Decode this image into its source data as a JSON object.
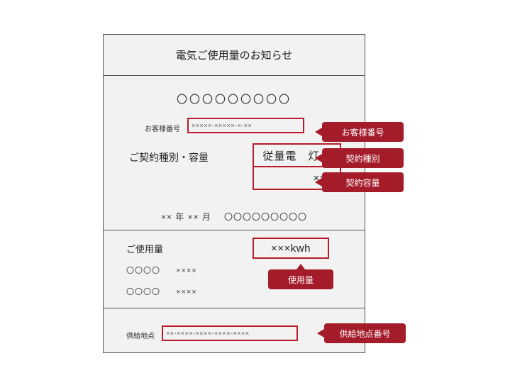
{
  "colors": {
    "highlight_border": "#b81c2b",
    "callout_bg": "#a41b2a",
    "callout_text": "#ffffff",
    "sheet_border": "#555555",
    "sheet_bg": "#f2f2f2",
    "text_main": "#222222",
    "text_sub": "#5a5a5a"
  },
  "header": {
    "title": "電気ご使用量のお知らせ"
  },
  "contract": {
    "circles_placeholder": "〇〇〇〇〇〇〇〇〇",
    "customer_no_label": "お客様番号",
    "customer_no_value": "×××××-×××××-×-××",
    "type_capacity_label": "ご契約種別・容量",
    "type_value": "従量電　灯 B",
    "capacity_value": "××A",
    "date_year_month": "×× 年 ×× 月",
    "date_circles": "〇〇〇〇〇〇〇〇〇"
  },
  "usage": {
    "label": "ご使用量",
    "value": "×××kwh",
    "row1_o": "〇〇〇〇",
    "row1_x": "××××",
    "row2_o": "〇〇〇〇",
    "row2_x": "××××"
  },
  "supply": {
    "label": "供給地点",
    "value": "××-××××-××××-××××-××××"
  },
  "callouts": {
    "customer_no": "お客様番号",
    "contract_type": "契約種別",
    "contract_capacity": "契約容量",
    "usage": "使用量",
    "supply_point_no": "供給地点番号"
  }
}
